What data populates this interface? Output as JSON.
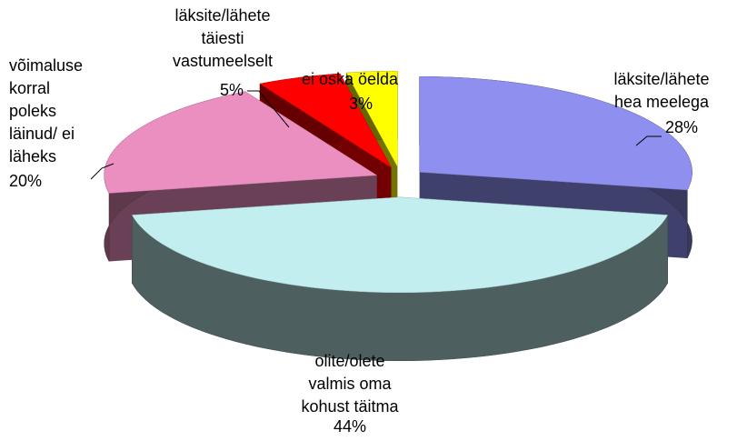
{
  "chart_data": {
    "type": "pie3d",
    "categories": [
      [
        "läksite/lähete",
        "hea meelega"
      ],
      [
        "olite/olete",
        "valmis oma",
        "kohust täitma"
      ],
      [
        "võimaluse",
        "korral",
        "poleks",
        "läinud/ ei",
        "läheks"
      ],
      [
        "läksite/lähete",
        "täiesti",
        "vastumeelselt"
      ],
      [
        "ei oska öelda"
      ]
    ],
    "values": [
      28,
      44,
      20,
      5,
      3
    ],
    "value_labels": [
      "28%",
      "44%",
      "20%",
      "5%",
      "3%"
    ],
    "colors": [
      "#8f8fef",
      "#c2eef0",
      "#ea8fbf",
      "#ff0000",
      "#ffff00"
    ]
  }
}
